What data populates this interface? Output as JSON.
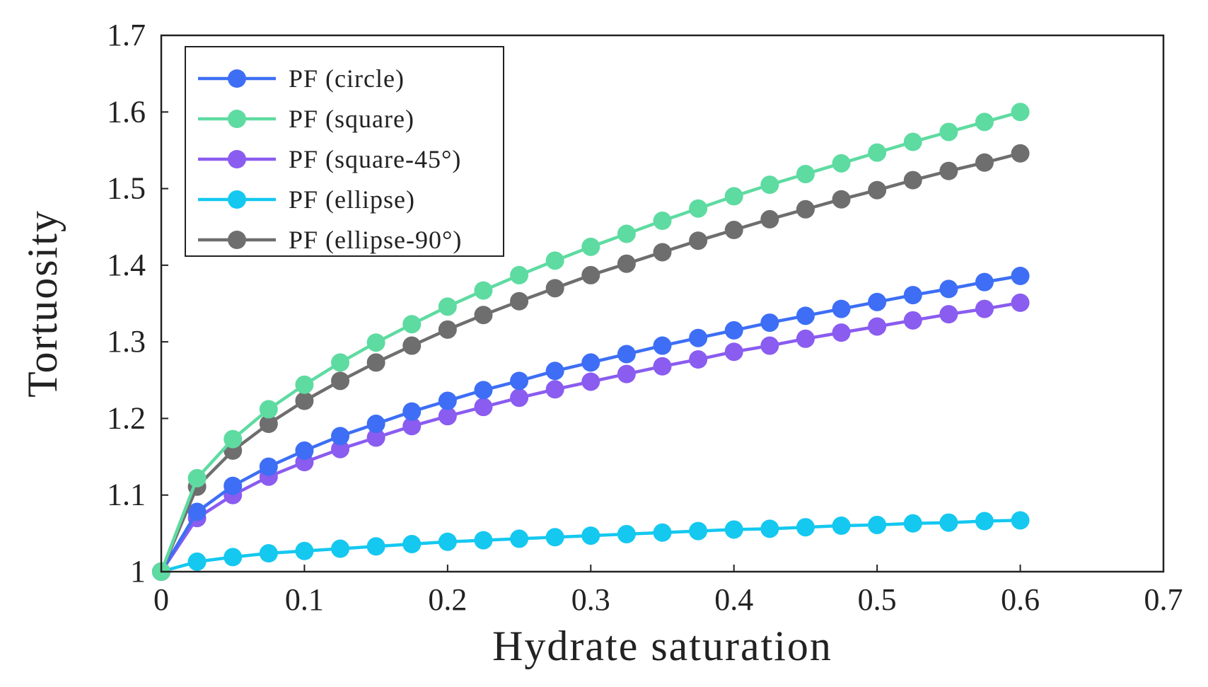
{
  "chart_data": {
    "type": "line",
    "title": "",
    "xlabel": "Hydrate saturation",
    "ylabel": "Tortuosity",
    "xlim": [
      0,
      0.7
    ],
    "ylim": [
      1,
      1.7
    ],
    "xticks": [
      0,
      0.1,
      0.2,
      0.3,
      0.4,
      0.5,
      0.6,
      0.7
    ],
    "xtick_labels": [
      "0",
      "0.1",
      "0.2",
      "0.3",
      "0.4",
      "0.5",
      "0.6",
      "0.7"
    ],
    "yticks": [
      1,
      1.1,
      1.2,
      1.3,
      1.4,
      1.5,
      1.6,
      1.7
    ],
    "ytick_labels": [
      "1",
      "1.1",
      "1.2",
      "1.3",
      "1.4",
      "1.5",
      "1.6",
      "1.7"
    ],
    "grid": false,
    "legend_position": "top-left",
    "x": [
      0,
      0.025,
      0.05,
      0.075,
      0.1,
      0.125,
      0.15,
      0.175,
      0.2,
      0.225,
      0.25,
      0.275,
      0.3,
      0.325,
      0.35,
      0.375,
      0.4,
      0.425,
      0.45,
      0.475,
      0.5,
      0.525,
      0.55,
      0.575,
      0.6
    ],
    "series": [
      {
        "name": "PF (circle)",
        "color": "#3d6ef5",
        "values": [
          1.0,
          1.078,
          1.112,
          1.137,
          1.158,
          1.177,
          1.193,
          1.209,
          1.223,
          1.237,
          1.249,
          1.262,
          1.273,
          1.284,
          1.295,
          1.305,
          1.315,
          1.325,
          1.334,
          1.343,
          1.352,
          1.361,
          1.369,
          1.378,
          1.386
        ]
      },
      {
        "name": "PF (square)",
        "color": "#5edba1",
        "values": [
          1.0,
          1.122,
          1.173,
          1.212,
          1.244,
          1.273,
          1.299,
          1.323,
          1.346,
          1.367,
          1.387,
          1.406,
          1.424,
          1.441,
          1.458,
          1.474,
          1.49,
          1.505,
          1.519,
          1.533,
          1.547,
          1.561,
          1.574,
          1.587,
          1.6
        ]
      },
      {
        "name": "PF (square-45°)",
        "color": "#8a5cf0",
        "values": [
          1.0,
          1.07,
          1.1,
          1.124,
          1.143,
          1.16,
          1.175,
          1.19,
          1.203,
          1.215,
          1.227,
          1.238,
          1.248,
          1.258,
          1.268,
          1.277,
          1.287,
          1.295,
          1.304,
          1.312,
          1.32,
          1.328,
          1.336,
          1.343,
          1.351
        ]
      },
      {
        "name": "PF (ellipse)",
        "color": "#14c8f0",
        "values": [
          1.0,
          1.013,
          1.019,
          1.024,
          1.027,
          1.03,
          1.033,
          1.036,
          1.039,
          1.041,
          1.043,
          1.045,
          1.047,
          1.049,
          1.051,
          1.053,
          1.055,
          1.056,
          1.058,
          1.06,
          1.061,
          1.063,
          1.064,
          1.066,
          1.067
        ]
      },
      {
        "name": "PF (ellipse-90°)",
        "color": "#6e6e6e",
        "values": [
          1.0,
          1.111,
          1.158,
          1.193,
          1.223,
          1.249,
          1.273,
          1.295,
          1.316,
          1.335,
          1.353,
          1.37,
          1.387,
          1.402,
          1.417,
          1.432,
          1.446,
          1.46,
          1.473,
          1.486,
          1.498,
          1.511,
          1.523,
          1.534,
          1.546
        ]
      }
    ]
  }
}
